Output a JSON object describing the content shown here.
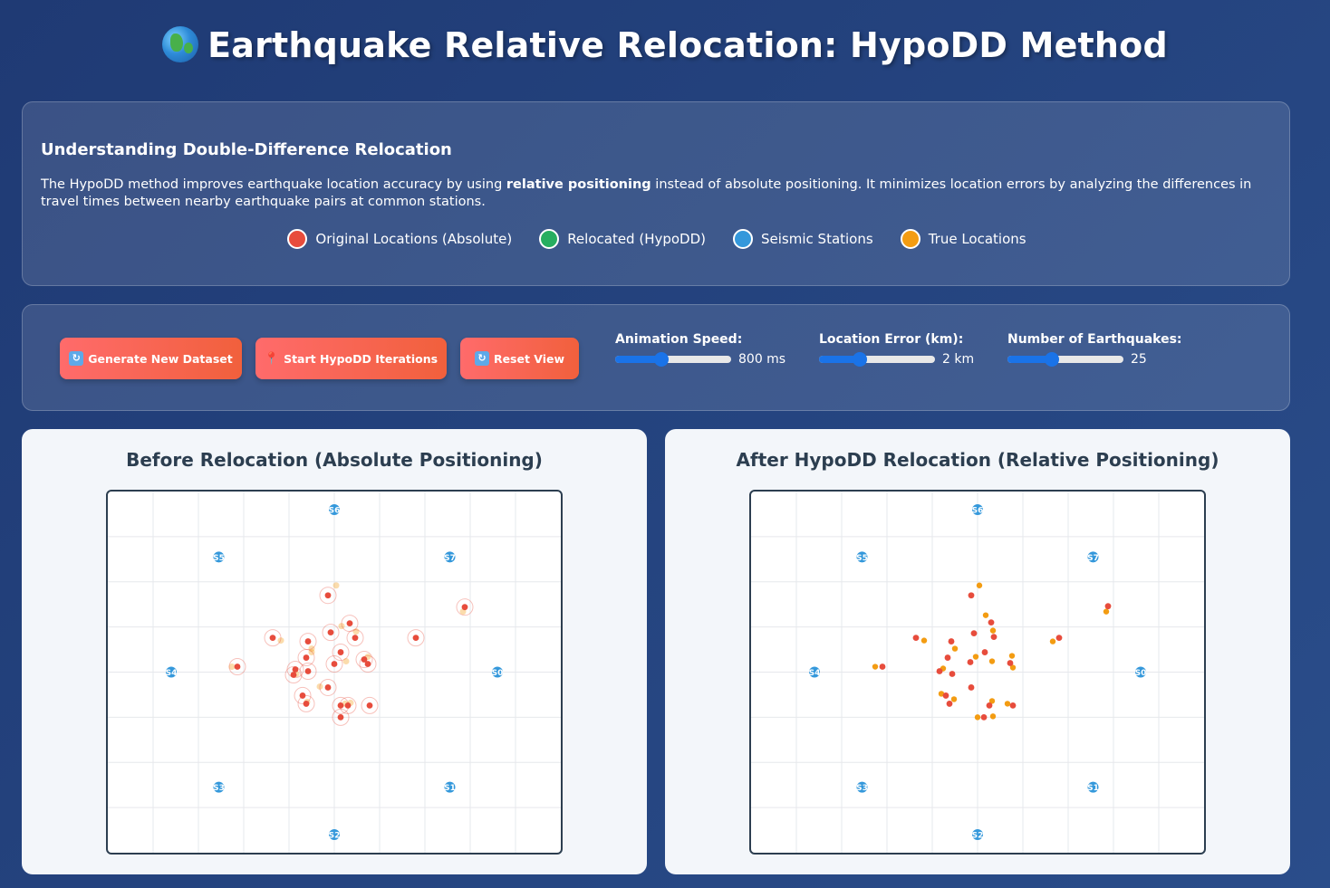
{
  "title": "Earthquake Relative Relocation: HypoDD Method",
  "title_icon": "globe-icon",
  "info": {
    "heading": "Understanding Double-Difference Relocation",
    "text_before": "The HypoDD method improves earthquake location accuracy by using ",
    "text_bold": "relative positioning",
    "text_after": " instead of absolute positioning. It minimizes location errors by analyzing the differences in travel times between nearby earthquake pairs at common stations."
  },
  "legend": [
    {
      "label": "Original Locations (Absolute)",
      "color": "#e74c3c"
    },
    {
      "label": "Relocated (HypoDD)",
      "color": "#27ae60"
    },
    {
      "label": "Seismic Stations",
      "color": "#3498db"
    },
    {
      "label": "True Locations",
      "color": "#f39c12"
    }
  ],
  "controls": {
    "buttons": [
      {
        "label": "Generate New Dataset",
        "icon": "refresh-icon"
      },
      {
        "label": "Start HypoDD Iterations",
        "icon": "pin-icon"
      },
      {
        "label": "Reset View",
        "icon": "refresh-icon"
      }
    ],
    "animation_speed": {
      "label": "Animation Speed:",
      "value_text": "800 ms",
      "fraction": 0.4
    },
    "location_error": {
      "label": "Location Error (km):",
      "value_text": "2 km",
      "fraction": 0.35
    },
    "num_earthquakes": {
      "label": "Number of Earthquakes:",
      "value_text": "25",
      "fraction": 0.38
    }
  },
  "panels": {
    "before": {
      "title": "Before Relocation (Absolute Positioning)"
    },
    "after": {
      "title": "After HypoDD Relocation (Relative Positioning)"
    }
  },
  "colors": {
    "original": "#e74c3c",
    "true": "#f39c12",
    "station": "#3498db"
  },
  "chart_data": {
    "type": "scatter",
    "xlim": [
      -50,
      50
    ],
    "ylim": [
      -40,
      40
    ],
    "grid": true,
    "stations": [
      {
        "label": "S0",
        "x": 36,
        "y": 0
      },
      {
        "label": "S1",
        "x": 25.5,
        "y": -25.5
      },
      {
        "label": "S2",
        "x": 0,
        "y": -36
      },
      {
        "label": "S3",
        "x": -25.5,
        "y": -25.5
      },
      {
        "label": "S4",
        "x": -36,
        "y": 0
      },
      {
        "label": "S5",
        "x": -25.5,
        "y": 25.5
      },
      {
        "label": "S6",
        "x": 0,
        "y": 36
      },
      {
        "label": "S7",
        "x": 25.5,
        "y": 25.5
      }
    ],
    "before": {
      "original": [
        [
          -1.4,
          17
        ],
        [
          28.8,
          14.4
        ],
        [
          -13.6,
          7.6
        ],
        [
          -5.8,
          6.8
        ],
        [
          -0.8,
          8.8
        ],
        [
          3.4,
          10.8
        ],
        [
          4.6,
          7.6
        ],
        [
          18,
          7.6
        ],
        [
          1.4,
          4.4
        ],
        [
          -6.2,
          3.2
        ],
        [
          0,
          1.8
        ],
        [
          6.6,
          2.8
        ],
        [
          7.4,
          1.8
        ],
        [
          -8.6,
          0.6
        ],
        [
          -5.8,
          0.2
        ],
        [
          -21.4,
          1.2
        ],
        [
          -9,
          -0.6
        ],
        [
          -1.4,
          -3.4
        ],
        [
          -7,
          -5.2
        ],
        [
          -6.2,
          -7
        ],
        [
          1.4,
          -7.4
        ],
        [
          3,
          -7.4
        ],
        [
          7.8,
          -7.4
        ],
        [
          1.4,
          -10
        ]
      ],
      "true": [
        [
          0.4,
          19.2
        ],
        [
          28.4,
          13.4
        ],
        [
          -11.8,
          7
        ],
        [
          -5,
          5.2
        ],
        [
          1.6,
          10.2
        ],
        [
          4.8,
          9
        ],
        [
          7.4,
          3.4
        ],
        [
          2.6,
          2.4
        ],
        [
          -5,
          4.4
        ],
        [
          -22.6,
          1.2
        ],
        [
          -8.4,
          -0.4
        ],
        [
          2.4,
          -7
        ],
        [
          -6,
          -6.6
        ],
        [
          -3.2,
          -3.2
        ],
        [
          3.6,
          -6.8
        ]
      ]
    },
    "after": {
      "original": [
        [
          -1.4,
          17
        ],
        [
          28.8,
          14.6
        ],
        [
          -13.6,
          7.6
        ],
        [
          3,
          11
        ],
        [
          -0.8,
          8.6
        ],
        [
          3.6,
          7.8
        ],
        [
          18,
          7.6
        ],
        [
          -5.8,
          6.8
        ],
        [
          1.6,
          4.4
        ],
        [
          -6.6,
          3.2
        ],
        [
          -1.6,
          2.2
        ],
        [
          7.2,
          2
        ],
        [
          -8.4,
          0.2
        ],
        [
          -21,
          1.2
        ],
        [
          -5.6,
          -0.4
        ],
        [
          -1.4,
          -3.4
        ],
        [
          -7,
          -5.2
        ],
        [
          -6.2,
          -7
        ],
        [
          2.6,
          -7.4
        ],
        [
          7.8,
          -7.4
        ],
        [
          1.4,
          -10
        ]
      ],
      "true": [
        [
          0.4,
          19.2
        ],
        [
          28.4,
          13.4
        ],
        [
          -11.8,
          7
        ],
        [
          1.8,
          12.6
        ],
        [
          3.4,
          9.2
        ],
        [
          -5,
          5.2
        ],
        [
          7.6,
          3.6
        ],
        [
          -0.4,
          3.4
        ],
        [
          3.2,
          2.4
        ],
        [
          -7.6,
          0.8
        ],
        [
          -22.6,
          1.2
        ],
        [
          7.8,
          1
        ],
        [
          -8,
          -4.8
        ],
        [
          -5.2,
          -6
        ],
        [
          3.2,
          -6.4
        ],
        [
          6.6,
          -7
        ],
        [
          0,
          -10
        ],
        [
          3.4,
          -9.8
        ],
        [
          16.6,
          6.8
        ]
      ]
    }
  }
}
